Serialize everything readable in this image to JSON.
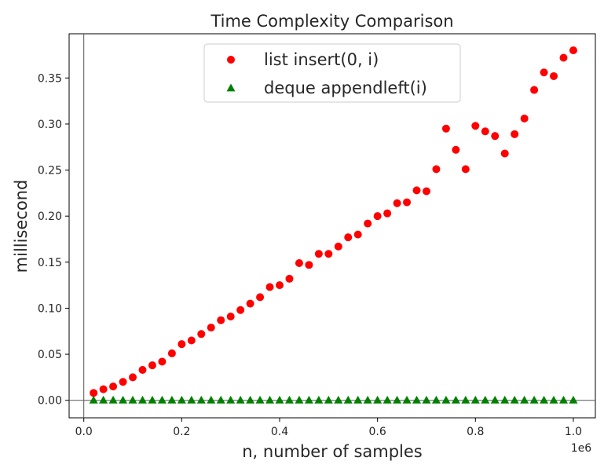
{
  "chart_data": {
    "type": "scatter",
    "title": "Time Complexity Comparison",
    "xlabel": "n, number of samples",
    "ylabel": "millisecond",
    "x_offset_label": "1e6",
    "xlim": [
      -0.03,
      1.045
    ],
    "ylim": [
      -0.019,
      0.398
    ],
    "x_ticks": [
      0.0,
      0.2,
      0.4,
      0.6,
      0.8,
      1.0
    ],
    "x_tick_labels": [
      "0.0",
      "0.2",
      "0.4",
      "0.6",
      "0.8",
      "1.0"
    ],
    "y_ticks": [
      0.0,
      0.05,
      0.1,
      0.15,
      0.2,
      0.25,
      0.3,
      0.35
    ],
    "y_tick_labels": [
      "0.00",
      "0.05",
      "0.10",
      "0.15",
      "0.20",
      "0.25",
      "0.30",
      "0.35"
    ],
    "reference_lines": {
      "x": 0,
      "y": 0
    },
    "grid": false,
    "legend_position": "top-center",
    "x": [
      0.02,
      0.04,
      0.06,
      0.08,
      0.1,
      0.12,
      0.14,
      0.16,
      0.18,
      0.2,
      0.22,
      0.24,
      0.26,
      0.28,
      0.3,
      0.32,
      0.34,
      0.36,
      0.38,
      0.4,
      0.42,
      0.44,
      0.46,
      0.48,
      0.5,
      0.52,
      0.54,
      0.56,
      0.58,
      0.6,
      0.62,
      0.64,
      0.66,
      0.68,
      0.7,
      0.72,
      0.74,
      0.76,
      0.78,
      0.8,
      0.82,
      0.84,
      0.86,
      0.88,
      0.9,
      0.92,
      0.94,
      0.96,
      0.98,
      1.0
    ],
    "series": [
      {
        "name": "list insert(0, i)",
        "marker": "circle",
        "color": "#ff0000",
        "values": [
          0.008,
          0.012,
          0.015,
          0.02,
          0.025,
          0.033,
          0.038,
          0.042,
          0.051,
          0.061,
          0.065,
          0.072,
          0.079,
          0.087,
          0.091,
          0.098,
          0.105,
          0.112,
          0.123,
          0.125,
          0.132,
          0.149,
          0.147,
          0.159,
          0.159,
          0.167,
          0.177,
          0.18,
          0.192,
          0.2,
          0.203,
          0.214,
          0.215,
          0.228,
          0.227,
          0.251,
          0.295,
          0.272,
          0.251,
          0.298,
          0.292,
          0.287,
          0.268,
          0.289,
          0.306,
          0.337,
          0.356,
          0.352,
          0.372,
          0.38
        ]
      },
      {
        "name": "deque appendleft(i)",
        "marker": "triangle",
        "color": "#008000",
        "values": [
          0.0003,
          0.0003,
          0.0003,
          0.0003,
          0.0003,
          0.0003,
          0.0003,
          0.0003,
          0.0003,
          0.0003,
          0.0003,
          0.0003,
          0.0003,
          0.0003,
          0.0003,
          0.0003,
          0.0003,
          0.0003,
          0.0003,
          0.0003,
          0.0003,
          0.0003,
          0.0003,
          0.0003,
          0.0003,
          0.0003,
          0.0003,
          0.0003,
          0.0003,
          0.0003,
          0.0003,
          0.0003,
          0.0003,
          0.0003,
          0.0003,
          0.0003,
          0.0003,
          0.0003,
          0.0003,
          0.0003,
          0.0003,
          0.0003,
          0.0003,
          0.0003,
          0.0003,
          0.0003,
          0.0003,
          0.0003,
          0.0003,
          0.0003
        ]
      }
    ]
  }
}
